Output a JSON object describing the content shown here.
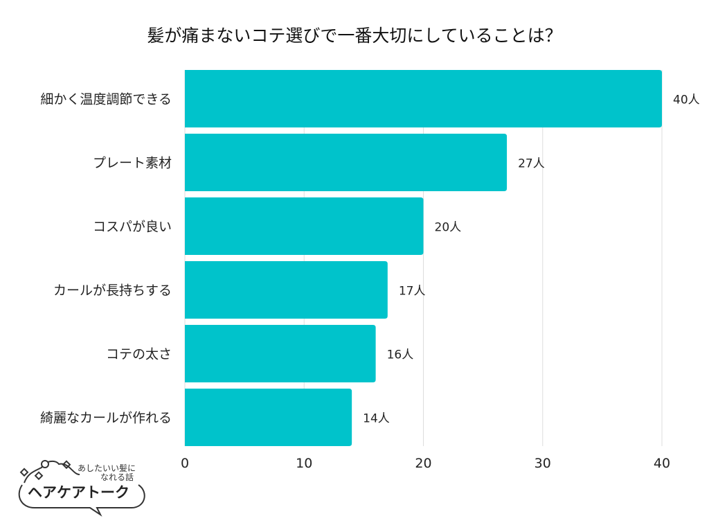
{
  "chart_data": {
    "type": "bar",
    "orientation": "horizontal",
    "title": "髪が痛まないコテ選びで一番大切にしていることは？",
    "categories": [
      "細かく温度調節できる",
      "プレート素材",
      "コスパが良い",
      "カールが長持ちする",
      "コテの太さ",
      "綺麗なカールが作れる"
    ],
    "values": [
      40,
      27,
      20,
      17,
      16,
      14
    ],
    "value_suffix": "人",
    "xlim": [
      0,
      40
    ],
    "xticks": [
      0,
      10,
      20,
      30,
      40
    ],
    "grid": true,
    "bar_color": "#00c3cb",
    "grid_color": "#dddddd"
  },
  "logo": {
    "tagline_1": "あしたいい髪に",
    "tagline_2": "なれる話",
    "name": "ヘアケアトーク"
  }
}
